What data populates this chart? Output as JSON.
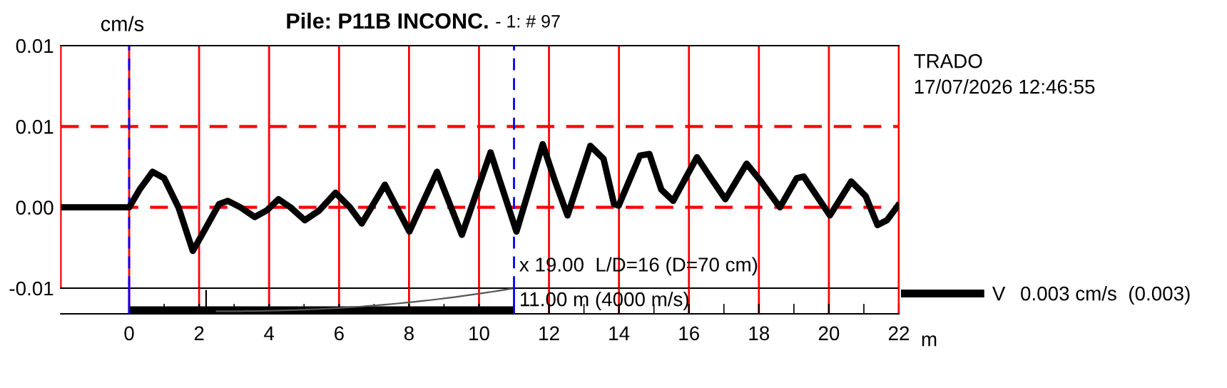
{
  "chart_data": {
    "type": "line",
    "title": "Pile: P11B INCONC.",
    "subtitle": "- 1: # 97",
    "xlabel": "m",
    "ylabel": "cm/s",
    "xlim": [
      -1.95,
      22
    ],
    "xticks": [
      0,
      2,
      4,
      6,
      8,
      10,
      12,
      14,
      16,
      18,
      20,
      22
    ],
    "ylim": [
      -0.005,
      0.01
    ],
    "yticks": [
      {
        "value": 0.01,
        "label": "0.01"
      },
      {
        "value": 0.005,
        "label": "0.01"
      },
      {
        "value": 0,
        "label": "0.00"
      },
      {
        "value": -0.005,
        "label": "-0.01"
      }
    ],
    "grid": "x",
    "legend": "right",
    "marker": "none",
    "line_style": "solid",
    "series": [
      {
        "name": "V",
        "color": "#000000",
        "x": [
          -1.95,
          0,
          0.3,
          0.67,
          1.0,
          1.41,
          1.82,
          2.16,
          2.57,
          2.82,
          3.18,
          3.59,
          3.93,
          4.27,
          4.61,
          5.02,
          5.43,
          5.9,
          6.31,
          6.65,
          7.31,
          8.01,
          8.8,
          9.51,
          10.33,
          11.07,
          11.82,
          12.16,
          12.53,
          13.18,
          13.56,
          13.86,
          13.99,
          14.6,
          14.87,
          15.21,
          15.55,
          16.23,
          16.63,
          17.04,
          17.65,
          18.06,
          18.6,
          19.08,
          19.28,
          20.03,
          20.64,
          21.05,
          21.39,
          21.66,
          21.97
        ],
        "values": [
          0,
          0,
          0.0011,
          0.0022,
          0.0018,
          0,
          -0.0027,
          -0.0014,
          0.0002,
          0.0004,
          0,
          -0.0006,
          -0.0002,
          0.0005,
          0,
          -0.0008,
          -0.0002,
          0.0009,
          0,
          -0.001,
          0.0014,
          -0.0015,
          0.0022,
          -0.0017,
          0.0034,
          -0.0015,
          0.0039,
          0.0017,
          -0.0005,
          0.0038,
          0.003,
          0.0002,
          0.0001,
          0.0032,
          0.0033,
          0.0011,
          0.0004,
          0.0031,
          0.0018,
          0.0005,
          0.0027,
          0.0016,
          0,
          0.0018,
          0.0019,
          -0.0005,
          0.0016,
          0.0007,
          -0.0011,
          -0.0008,
          0.0001
        ]
      }
    ],
    "ref_lines": [
      {
        "axis": "y",
        "value": 0,
        "color": "#ff0000",
        "line_style": "dashed"
      },
      {
        "axis": "y",
        "value": 0.005,
        "color": "#ff0000",
        "line_style": "dashed"
      },
      {
        "axis": "x",
        "value": 0,
        "color": "#0000ff",
        "line_style": "dashed"
      },
      {
        "axis": "x",
        "value": 11,
        "color": "#0000ff",
        "line_style": "dashed"
      }
    ],
    "annotations": [
      "TRADO",
      "17/07/2026 12:46:55",
      "x 19.00  L/D=16 (D=70 cm)",
      "11.00 m (4000 m/s)",
      "0.003 cm/s  (0.003)"
    ]
  }
}
